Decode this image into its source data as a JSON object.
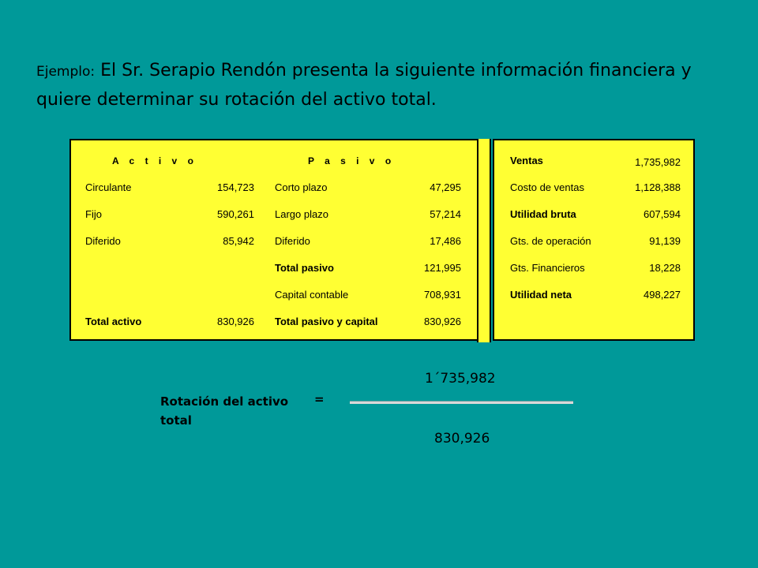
{
  "intro": {
    "lead": "Ejemplo:",
    "text": " El Sr. Serapio Rendón presenta la siguiente información financiera y quiere determinar su rotación del activo total."
  },
  "balance": {
    "activo_header": "A c t i v o",
    "pasivo_header": "P a s i v o",
    "activo": [
      {
        "label": "Circulante",
        "value": "154,723"
      },
      {
        "label": "Fijo",
        "value": "590,261"
      },
      {
        "label": "Diferido",
        "value": "85,942"
      }
    ],
    "activo_total": {
      "label": "Total activo",
      "value": "830,926"
    },
    "pasivo": [
      {
        "label": "Corto plazo",
        "value": "47,295"
      },
      {
        "label": "Largo plazo",
        "value": "57,214"
      },
      {
        "label": "Diferido",
        "value": "17,486"
      }
    ],
    "pasivo_total": {
      "label": "Total pasivo",
      "value": "121,995"
    },
    "capital": {
      "label": "Capital contable",
      "value": "708,931"
    },
    "pasivo_capital_total": {
      "label": "Total pasivo y capital",
      "value": "830,926"
    }
  },
  "income": [
    {
      "label": "Ventas",
      "value": "1,735,982",
      "bold": true
    },
    {
      "label": "Costo de ventas",
      "value": "1,128,388",
      "bold": false
    },
    {
      "label": "Utilidad bruta",
      "value": "607,594",
      "bold": true
    },
    {
      "label": "Gts. de operación",
      "value": "91,139",
      "bold": false
    },
    {
      "label": "Gts. Financieros",
      "value": "18,228",
      "bold": false
    },
    {
      "label": "Utilidad neta",
      "value": "498,227",
      "bold": true
    }
  ],
  "formula": {
    "label": "Rotación del activo total",
    "equals": "=",
    "numerator": "1´735,982",
    "denominator": "830,926"
  }
}
